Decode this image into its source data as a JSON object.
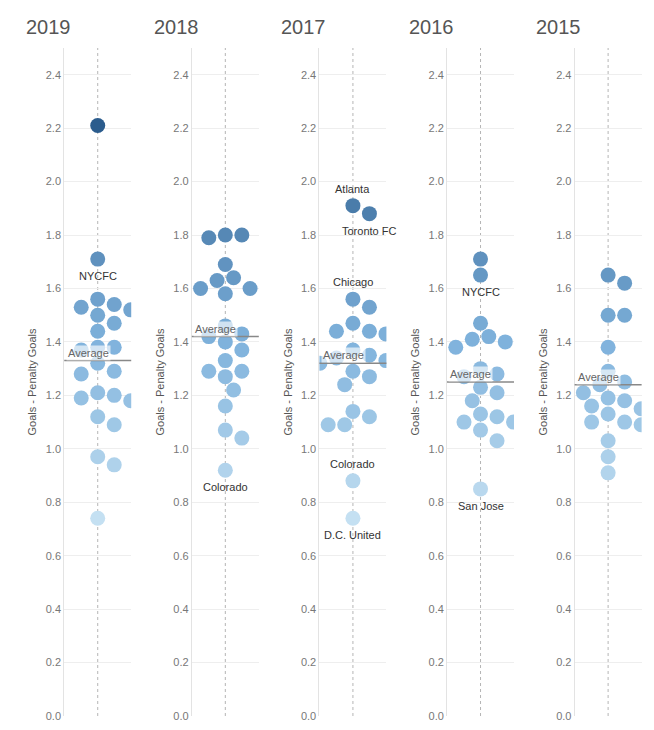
{
  "chart_data": [
    {
      "type": "scatter",
      "title": "2019",
      "y_label": "Goals - Penalty Goals",
      "ylim": [
        0,
        2.5
      ],
      "yticks": [
        {
          "value": 0,
          "label": "0.0"
        },
        0.2,
        0.4,
        0.6,
        0.8,
        {
          "value": 1,
          "label": "1.0"
        },
        1.2,
        1.4,
        1.6,
        1.8,
        {
          "value": 2,
          "label": "2.0"
        },
        2.2,
        2.4
      ],
      "grid": true,
      "values": [
        2.21,
        1.71,
        1.56,
        1.54,
        1.53,
        1.52,
        1.5,
        1.47,
        1.44,
        1.38,
        1.38,
        1.37,
        1.32,
        1.29,
        1.28,
        1.21,
        1.2,
        1.19,
        1.18,
        1.12,
        1.09,
        0.97,
        0.94,
        0.74
      ],
      "average": {
        "label": "Average",
        "value": 1.33
      },
      "annotations": [
        {
          "text": "NYCFC",
          "value": 1.71
        }
      ]
    },
    {
      "type": "scatter",
      "title": "2018",
      "y_label": "Goals - Penalty Goals",
      "ylim": [
        0,
        2.5
      ],
      "yticks": [
        {
          "value": 0,
          "label": "0.0"
        },
        0.2,
        0.4,
        0.6,
        0.8,
        {
          "value": 1,
          "label": "1.0"
        },
        1.2,
        1.4,
        1.6,
        1.8,
        {
          "value": 2,
          "label": "2.0"
        },
        2.2,
        2.4
      ],
      "grid": true,
      "values": [
        1.8,
        1.8,
        1.79,
        1.69,
        1.64,
        1.63,
        1.6,
        1.6,
        1.59,
        1.58,
        1.46,
        1.43,
        1.42,
        1.4,
        1.37,
        1.33,
        1.29,
        1.29,
        1.27,
        1.22,
        1.16,
        1.07,
        1.04,
        0.92
      ],
      "average": {
        "label": "Average",
        "value": 1.42
      },
      "annotations": [
        {
          "text": "Colorado",
          "value": 0.92
        }
      ]
    },
    {
      "type": "scatter",
      "title": "2017",
      "y_label": "Goals - Penalty Goals",
      "ylim": [
        0,
        2.5
      ],
      "yticks": [
        {
          "value": 0,
          "label": "0.0"
        },
        0.2,
        0.4,
        0.6,
        0.8,
        {
          "value": 1,
          "label": "1.0"
        },
        1.2,
        1.4,
        1.6,
        1.8,
        {
          "value": 2,
          "label": "2.0"
        },
        2.2,
        2.4
      ],
      "grid": true,
      "values": [
        1.91,
        1.88,
        1.56,
        1.53,
        1.47,
        1.44,
        1.44,
        1.43,
        1.37,
        1.35,
        1.34,
        1.33,
        1.32,
        1.29,
        1.27,
        1.24,
        1.14,
        1.12,
        1.09,
        1.09,
        0.88,
        0.74
      ],
      "average": {
        "label": "Average",
        "value": 1.32
      },
      "annotations": [
        {
          "text": "Atlanta",
          "value": 1.91
        },
        {
          "text": "Toronto FC",
          "value": 1.88
        },
        {
          "text": "Chicago",
          "value": 1.56
        },
        {
          "text": "Colorado",
          "value": 0.88
        },
        {
          "text": "D.C. United",
          "value": 0.74
        }
      ]
    },
    {
      "type": "scatter",
      "title": "2016",
      "y_label": "Goals - Penalty Goals",
      "ylim": [
        0,
        2.5
      ],
      "yticks": [
        {
          "value": 0,
          "label": "0.0"
        },
        0.2,
        0.4,
        0.6,
        0.8,
        {
          "value": 1,
          "label": "1.0"
        },
        1.2,
        1.4,
        1.6,
        1.8,
        {
          "value": 2,
          "label": "2.0"
        },
        2.2,
        2.4
      ],
      "grid": true,
      "values": [
        1.71,
        1.65,
        1.47,
        1.42,
        1.41,
        1.4,
        1.38,
        1.3,
        1.28,
        1.27,
        1.23,
        1.21,
        1.18,
        1.13,
        1.12,
        1.1,
        1.1,
        1.07,
        1.03,
        0.85
      ],
      "average": {
        "label": "Average",
        "value": 1.25
      },
      "annotations": [
        {
          "text": "NYCFC",
          "value": 1.65
        },
        {
          "text": "San Jose",
          "value": 0.85
        }
      ]
    },
    {
      "type": "scatter",
      "title": "2015",
      "y_label": "Goals - Penalty Goals",
      "ylim": [
        0,
        2.5
      ],
      "yticks": [
        {
          "value": 0,
          "label": "0.0"
        },
        0.2,
        0.4,
        0.6,
        0.8,
        {
          "value": 1,
          "label": "1.0"
        },
        1.2,
        1.4,
        1.6,
        1.8,
        {
          "value": 2,
          "label": "2.0"
        },
        2.2,
        2.4
      ],
      "grid": true,
      "values": [
        1.65,
        1.62,
        1.5,
        1.5,
        1.38,
        1.29,
        1.25,
        1.24,
        1.21,
        1.19,
        1.18,
        1.16,
        1.15,
        1.13,
        1.1,
        1.1,
        1.09,
        1.03,
        0.97,
        0.91
      ],
      "average": {
        "label": "Average",
        "value": 1.24
      },
      "annotations": []
    }
  ]
}
